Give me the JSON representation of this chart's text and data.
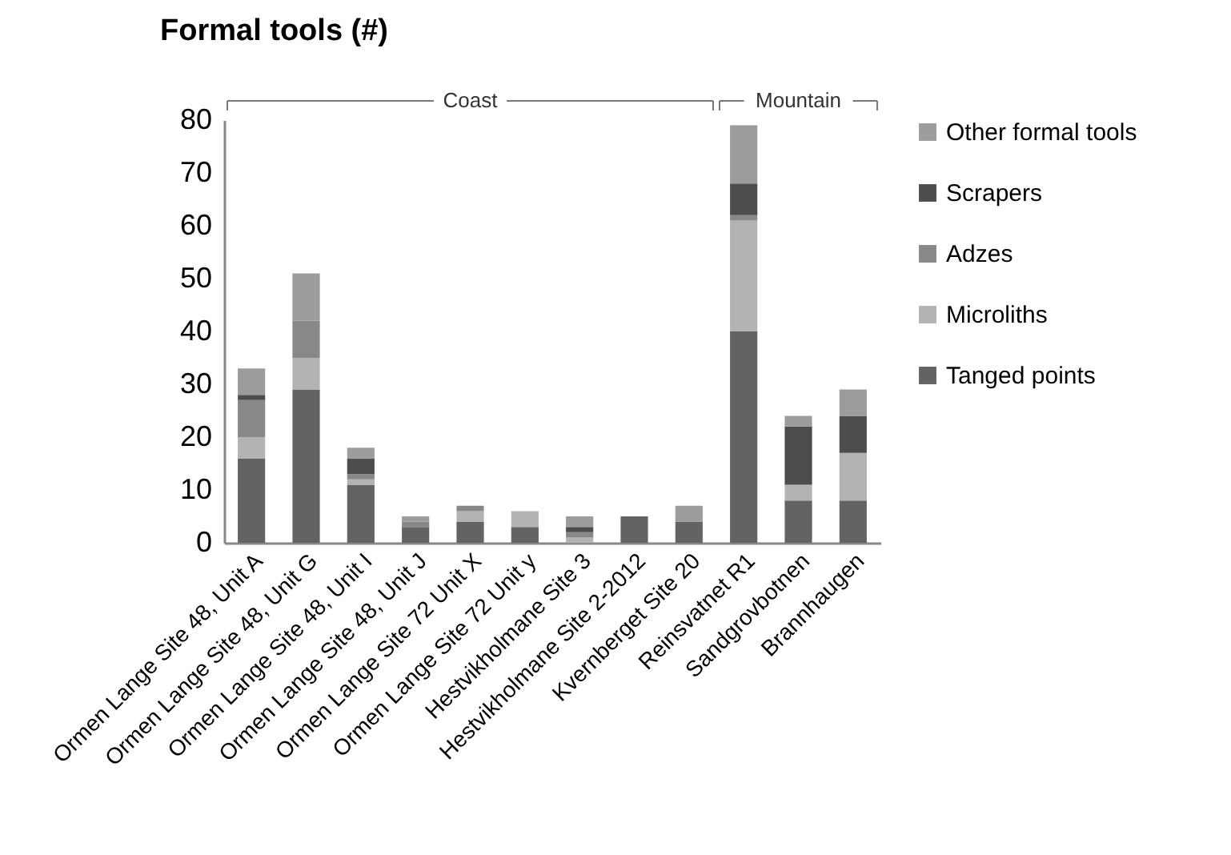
{
  "chart_data": {
    "type": "bar",
    "title": "Formal tools (#)",
    "stacked": true,
    "legend": "right",
    "grid": false,
    "categories": [
      "Ormen Lange Site 48, Unit A",
      "Ormen Lange Site 48, Unit G",
      "Ormen Lange Site 48, Unit I",
      "Ormen Lange Site 48, Unit J",
      "Ormen Lange Site 72 Unit X",
      "Ormen Lange Site 72 Unit y",
      "Hestvikholmane Site 3",
      "Hestvikholmane Site 2-2012",
      "Kvernberget Site 20",
      "Reinsvatnet R1",
      "Sandgrovbotnen",
      "Brannhaugen"
    ],
    "series": [
      {
        "name": "Tanged points",
        "color": "#636363",
        "values": [
          16,
          29,
          11,
          3,
          4,
          3,
          0,
          5,
          4,
          40,
          8,
          8
        ]
      },
      {
        "name": "Microliths",
        "color": "#b3b3b3",
        "values": [
          4,
          6,
          1,
          0,
          2,
          3,
          1,
          0,
          0,
          21,
          3,
          9
        ]
      },
      {
        "name": "Adzes",
        "color": "#888888",
        "values": [
          7,
          7,
          1,
          1,
          1,
          0,
          1,
          0,
          0,
          1,
          0,
          0
        ]
      },
      {
        "name": "Scrapers",
        "color": "#4d4d4d",
        "values": [
          1,
          0,
          3,
          0,
          0,
          0,
          1,
          0,
          0,
          6,
          11,
          7
        ]
      },
      {
        "name": "Other formal tools",
        "color": "#9c9c9c",
        "values": [
          5,
          9,
          2,
          1,
          0,
          0,
          2,
          0,
          3,
          11,
          2,
          5
        ]
      }
    ],
    "ylim": [
      0,
      80
    ],
    "yticks": [
      0,
      10,
      20,
      30,
      40,
      50,
      60,
      70,
      80
    ],
    "annotations": [
      "Coast",
      "Mountain"
    ]
  }
}
